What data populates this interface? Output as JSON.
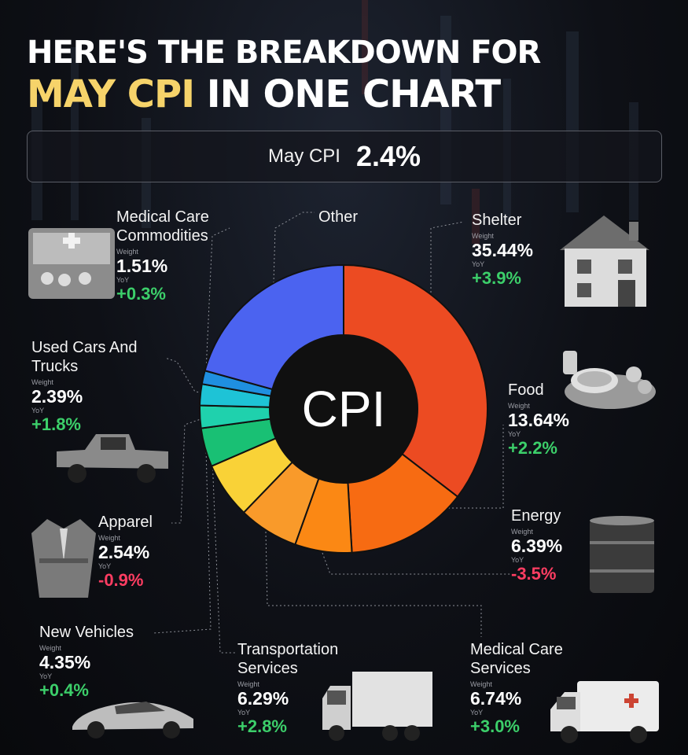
{
  "title": {
    "line1": "HERE'S THE BREAKDOWN FOR",
    "line2_highlight": "MAY CPI",
    "line2_rest": " IN ONE CHART"
  },
  "headline": {
    "label": "May CPI",
    "value": "2.4%"
  },
  "weight_label": "Weight",
  "yoy_label": "YoY",
  "chart_data": {
    "type": "pie",
    "center_label": "CPI",
    "slices": [
      {
        "name": "Shelter",
        "weight": 35.44,
        "yoy": "+3.9%",
        "color": "#ec4b22"
      },
      {
        "name": "Food",
        "weight": 13.64,
        "yoy": "+2.2%",
        "color": "#f76b12"
      },
      {
        "name": "Energy",
        "weight": 6.39,
        "yoy": "-3.5%",
        "color": "#fb8814"
      },
      {
        "name": "Medical Care Services",
        "weight": 6.74,
        "yoy": "+3.0%",
        "color": "#f99a2a"
      },
      {
        "name": "Transportation Services",
        "weight": 6.29,
        "yoy": "+2.8%",
        "color": "#f9d237"
      },
      {
        "name": "New Vehicles",
        "weight": 4.35,
        "yoy": "+0.4%",
        "color": "#19c074"
      },
      {
        "name": "Apparel",
        "weight": 2.54,
        "yoy": "-0.9%",
        "color": "#1fd1ad"
      },
      {
        "name": "Used Cars And Trucks",
        "weight": 2.39,
        "yoy": "+1.8%",
        "color": "#1ec3d6"
      },
      {
        "name": "Medical Care Commodities",
        "weight": 1.51,
        "yoy": "+0.3%",
        "color": "#1f8fe0"
      },
      {
        "name": "Other",
        "weight": 20.71,
        "yoy": "",
        "color": "#4b63f0"
      }
    ]
  },
  "labels": {
    "shelter": {
      "name": "Shelter",
      "weight": "35.44%",
      "yoy": "+3.9%"
    },
    "food": {
      "name": "Food",
      "weight": "13.64%",
      "yoy": "+2.2%"
    },
    "energy": {
      "name": "Energy",
      "weight": "6.39%",
      "yoy": "-3.5%"
    },
    "medical_services": {
      "name": "Medical Care\nServices",
      "weight": "6.74%",
      "yoy": "+3.0%"
    },
    "transportation": {
      "name": "Transportation\nServices",
      "weight": "6.29%",
      "yoy": "+2.8%"
    },
    "new_vehicles": {
      "name": "New Vehicles",
      "weight": "4.35%",
      "yoy": "+0.4%"
    },
    "apparel": {
      "name": "Apparel",
      "weight": "2.54%",
      "yoy": "-0.9%"
    },
    "used_cars": {
      "name": "Used Cars And\nTrucks",
      "weight": "2.39%",
      "yoy": "+1.8%"
    },
    "medical_commodities": {
      "name": "Medical Care\nCommodities",
      "weight": "1.51%",
      "yoy": "+0.3%"
    },
    "other": {
      "name": "Other"
    }
  },
  "icons": [
    "house-icon",
    "food-bowl-icon",
    "oil-barrel-icon",
    "ambulance-icon",
    "truck-icon",
    "sports-car-icon",
    "blazer-icon",
    "pickup-truck-icon",
    "medical-kit-icon"
  ]
}
